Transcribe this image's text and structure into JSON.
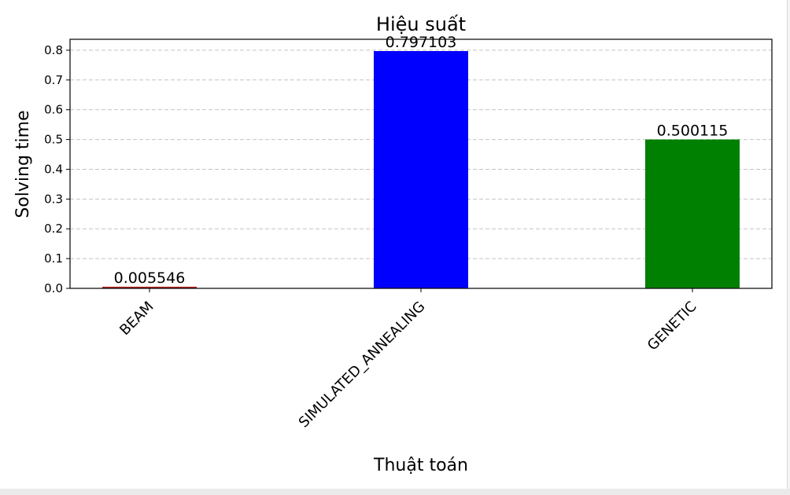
{
  "chart_data": {
    "type": "bar",
    "title": "Hiệu suất",
    "xlabel": "Thuật toán",
    "ylabel": "Solving time",
    "categories": [
      "BEAM",
      "SIMULATED_ANNEALING",
      "GENETIC"
    ],
    "values": [
      0.005546,
      0.797103,
      0.500115
    ],
    "value_labels": [
      "0.005546",
      "0.797103",
      "0.500115"
    ],
    "colors": [
      "#b22222",
      "#0000ff",
      "#008000"
    ],
    "ylim": [
      0,
      0.8367
    ],
    "yticks": [
      0.0,
      0.1,
      0.2,
      0.3,
      0.4,
      0.5,
      0.6,
      0.7,
      0.8
    ],
    "ytick_labels": [
      "0.0",
      "0.1",
      "0.2",
      "0.3",
      "0.4",
      "0.5",
      "0.6",
      "0.7",
      "0.8"
    ],
    "grid": "y dashed",
    "category_label_rotation": -45
  }
}
